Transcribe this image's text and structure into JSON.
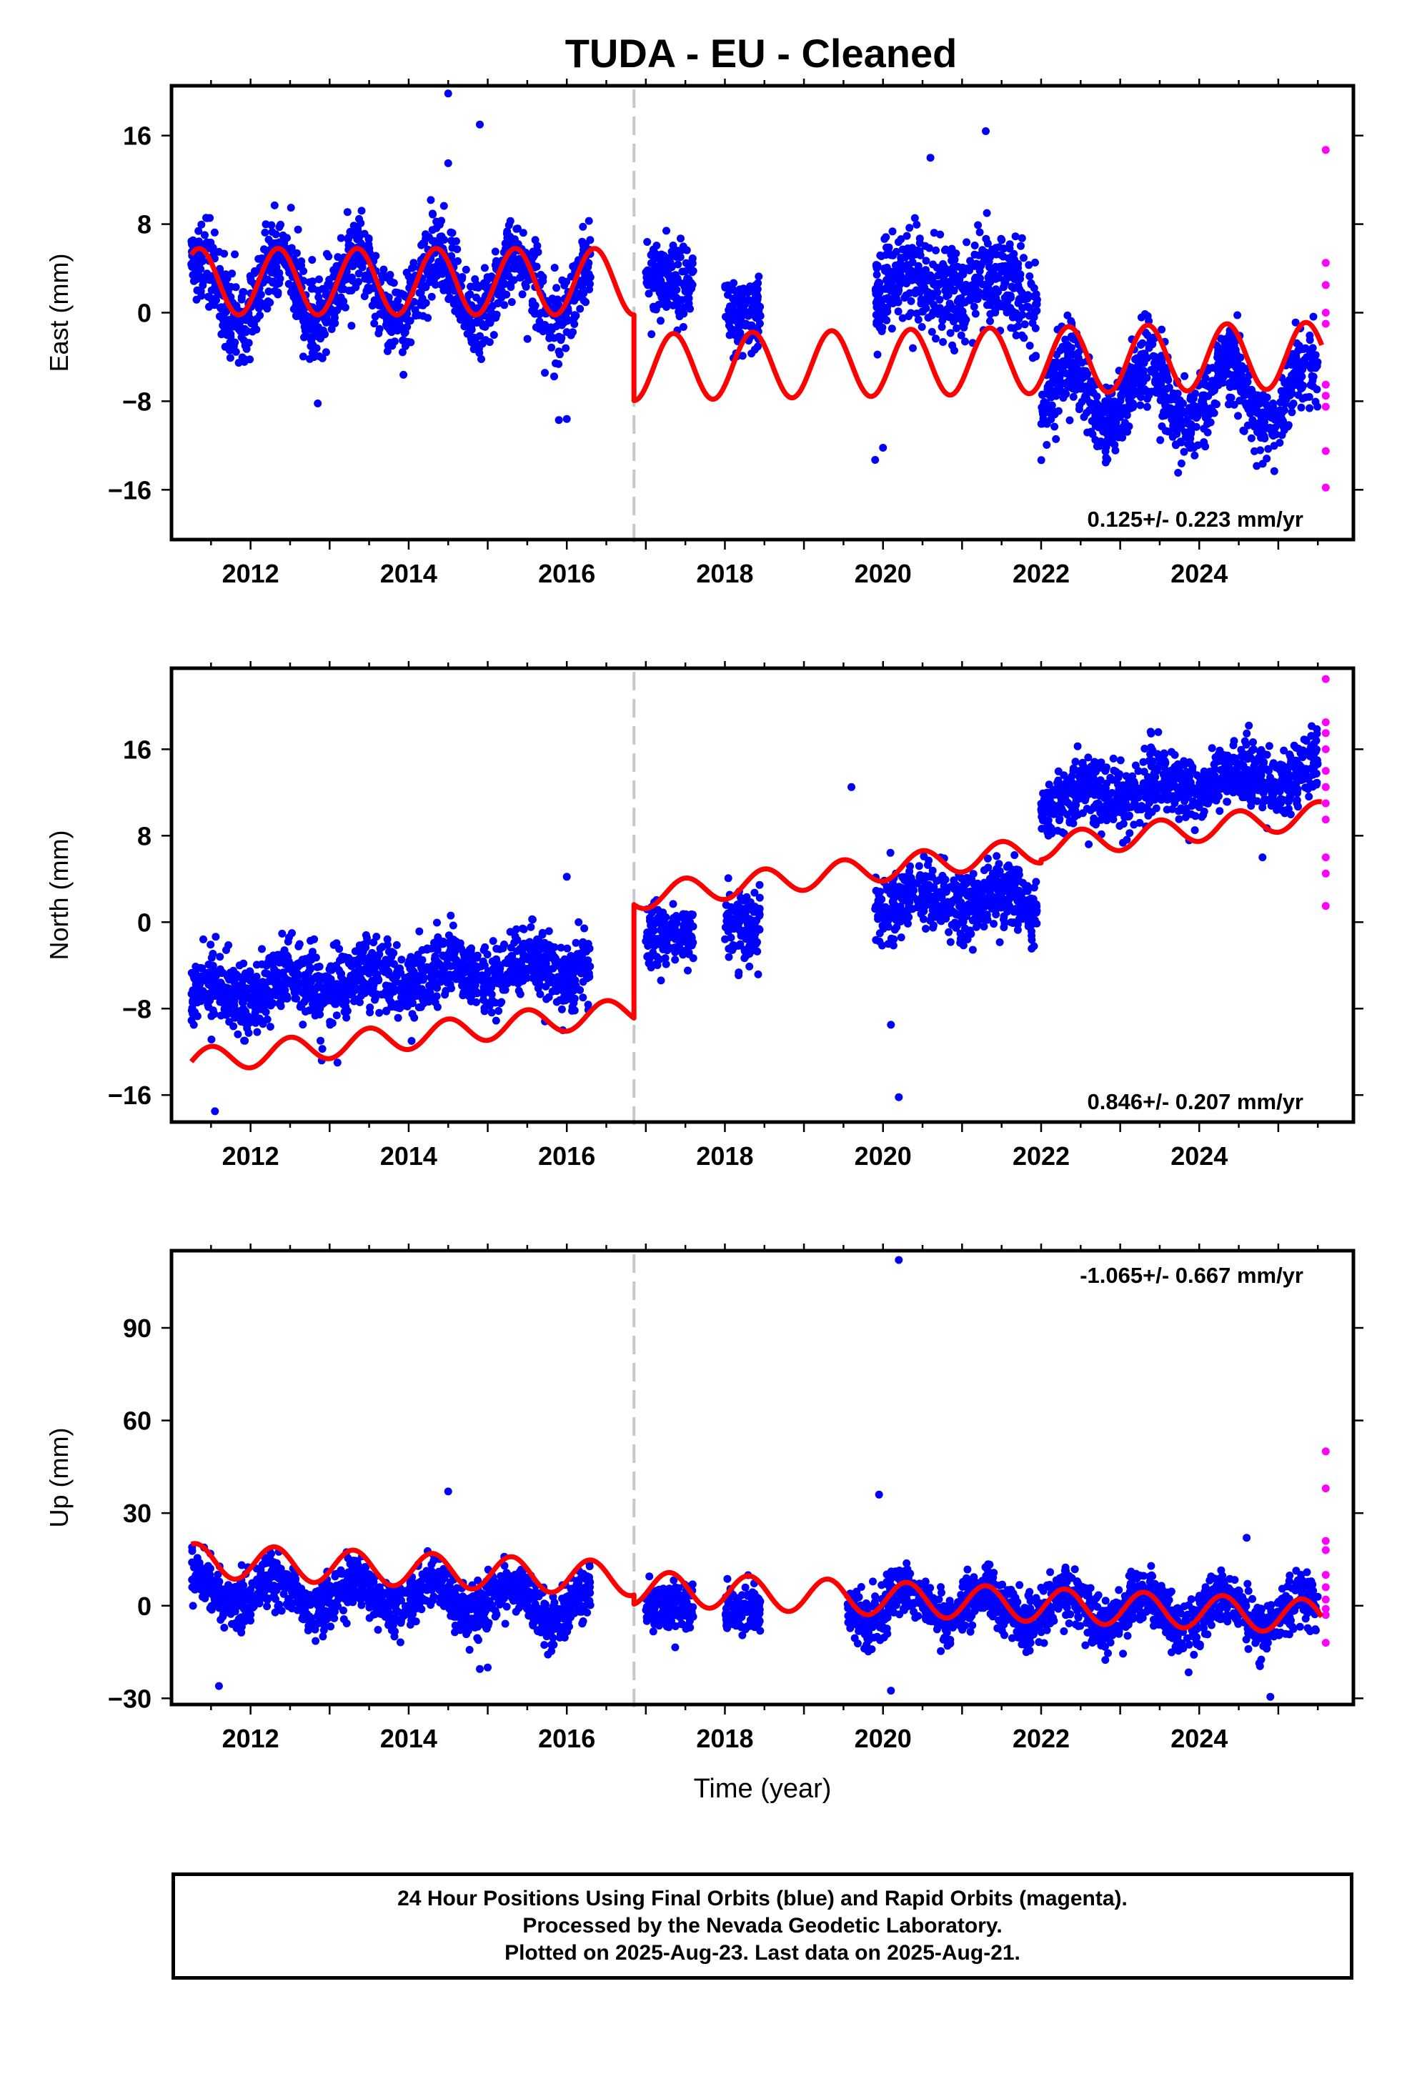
{
  "title": "TUDA  - EU - Cleaned",
  "footer": {
    "line1": "24 Hour Positions Using Final Orbits (blue) and Rapid Orbits (magenta).",
    "line2": "Processed by the Nevada Geodetic Laboratory.",
    "line3": "Plotted on 2025-Aug-23. Last data on 2025-Aug-21."
  },
  "colors": {
    "final_orbits": "#0000ff",
    "rapid_orbits": "#ff00ff",
    "model_fit": "#ff0000",
    "event_line": "#c8c8c8"
  },
  "chart_data": [
    {
      "type": "scatter",
      "id": "east",
      "ylabel": "East (mm)",
      "xlabel": "",
      "xlim": [
        2011.0,
        2025.95
      ],
      "ylim": [
        -20.5,
        20.5
      ],
      "x_ticks": [
        2012,
        2014,
        2016,
        2018,
        2020,
        2022,
        2024
      ],
      "y_ticks": [
        -16,
        -8,
        0,
        8,
        16
      ],
      "y_tick_labels": [
        "−16",
        "−8",
        "0",
        "8",
        "16"
      ],
      "rate_label": "0.125+/- 0.223 mm/yr",
      "rate_position": "bottom-right",
      "grid": false,
      "event_line_x": 2016.85,
      "segments": [
        {
          "from": 2011.25,
          "to": 2016.85,
          "offset": 2.8,
          "slope": 0.0,
          "amplitude": 3.0,
          "phase": 0.1
        },
        {
          "from": 2016.85,
          "to": 2025.55,
          "offset": -4.8,
          "slope": 0.125,
          "amplitude": 3.0,
          "phase": 0.1
        }
      ],
      "data_clusters": [
        {
          "from": 2011.25,
          "to": 2016.3,
          "center": 2.2,
          "spread": 2.4,
          "seasonal": 3.0
        },
        {
          "from": 2017.0,
          "to": 2017.6,
          "center": 3.0,
          "spread": 2.4,
          "seasonal": 0
        },
        {
          "from": 2018.0,
          "to": 2018.45,
          "center": 0.0,
          "spread": 2.4,
          "seasonal": 0
        },
        {
          "from": 2019.9,
          "to": 2021.95,
          "center": 2.5,
          "spread": 3.0,
          "seasonal": 1.0
        },
        {
          "from": 2022.0,
          "to": 2025.5,
          "center": -7.5,
          "spread": 2.4,
          "seasonal": 3.0
        }
      ],
      "outliers": [
        [
          2014.5,
          19.8
        ],
        [
          2014.5,
          13.5
        ],
        [
          2014.9,
          17.0
        ],
        [
          2012.85,
          -8.2
        ],
        [
          2015.9,
          -9.7
        ],
        [
          2016.0,
          -9.6
        ],
        [
          2020.0,
          -12.2
        ],
        [
          2020.6,
          14.0
        ],
        [
          2021.3,
          16.4
        ],
        [
          2019.9,
          -13.3
        ]
      ],
      "rapid_points": [
        [
          2025.6,
          14.7
        ],
        [
          2025.6,
          4.5
        ],
        [
          2025.6,
          2.5
        ],
        [
          2025.6,
          0.0
        ],
        [
          2025.6,
          -1.0
        ],
        [
          2025.6,
          -6.5
        ],
        [
          2025.6,
          -7.5
        ],
        [
          2025.6,
          -8.5
        ],
        [
          2025.6,
          -12.5
        ],
        [
          2025.6,
          -15.8
        ]
      ]
    },
    {
      "type": "scatter",
      "id": "north",
      "ylabel": "North (mm)",
      "xlabel": "",
      "xlim": [
        2011.0,
        2025.95
      ],
      "ylim": [
        -18.5,
        23.5
      ],
      "x_ticks": [
        2012,
        2014,
        2016,
        2018,
        2020,
        2022,
        2024
      ],
      "y_ticks": [
        -16,
        -8,
        0,
        8,
        16
      ],
      "y_tick_labels": [
        "−16",
        "−8",
        "0",
        "8",
        "16"
      ],
      "rate_label": "0.846+/- 0.207 mm/yr",
      "rate_position": "bottom-right",
      "grid": false,
      "event_line_x": 2016.85,
      "segments": [
        {
          "from": 2011.25,
          "to": 2016.85,
          "offset": -7.2,
          "slope": 0.846,
          "amplitude": 1.2,
          "phase": 0.25
        },
        {
          "from": 2016.85,
          "to": 2022.0,
          "offset": 3.3,
          "slope": 0.846,
          "amplitude": 1.2,
          "phase": 0.25
        },
        {
          "from": 2022.0,
          "to": 2025.55,
          "offset": 3.6,
          "slope": 0.846,
          "amplitude": 1.2,
          "phase": 0.25
        }
      ],
      "data_clusters": [
        {
          "from": 2011.25,
          "to": 2016.3,
          "center": -5.2,
          "spread": 2.2,
          "seasonal": 1.0,
          "trend": 0.55
        },
        {
          "from": 2017.0,
          "to": 2017.6,
          "center": -1.0,
          "spread": 2.0,
          "seasonal": 0
        },
        {
          "from": 2018.0,
          "to": 2018.45,
          "center": -0.5,
          "spread": 2.2,
          "seasonal": 0
        },
        {
          "from": 2019.9,
          "to": 2021.95,
          "center": 2.0,
          "spread": 2.0,
          "seasonal": 0.8
        },
        {
          "from": 2022.0,
          "to": 2025.5,
          "center": 12.5,
          "spread": 2.0,
          "seasonal": 1.0,
          "trend": 0.7
        }
      ],
      "outliers": [
        [
          2011.55,
          -17.5
        ],
        [
          2012.9,
          -12.8
        ],
        [
          2013.1,
          -13.0
        ],
        [
          2015.95,
          -10.0
        ],
        [
          2019.6,
          12.5
        ],
        [
          2020.2,
          -16.2
        ],
        [
          2020.1,
          -9.5
        ],
        [
          2016.0,
          4.2
        ],
        [
          2024.8,
          6.0
        ]
      ],
      "rapid_points": [
        [
          2025.6,
          22.5
        ],
        [
          2025.6,
          18.5
        ],
        [
          2025.6,
          17.5
        ],
        [
          2025.6,
          16.0
        ],
        [
          2025.6,
          14.0
        ],
        [
          2025.6,
          12.5
        ],
        [
          2025.6,
          11.0
        ],
        [
          2025.6,
          9.5
        ],
        [
          2025.6,
          6.0
        ],
        [
          2025.6,
          4.5
        ],
        [
          2025.6,
          1.5
        ]
      ]
    },
    {
      "type": "scatter",
      "id": "up",
      "ylabel": "Up (mm)",
      "xlabel": "Time (year)",
      "xlim": [
        2011.0,
        2025.95
      ],
      "ylim": [
        -32,
        115
      ],
      "x_ticks": [
        2012,
        2014,
        2016,
        2018,
        2020,
        2022,
        2024
      ],
      "y_ticks": [
        -30,
        0,
        30,
        60,
        90
      ],
      "y_tick_labels": [
        "−30",
        "0",
        "30",
        "60",
        "90"
      ],
      "rate_label": "-1.065+/- 0.667 mm/yr",
      "rate_position": "top-right",
      "grid": false,
      "event_line_x": 2016.85,
      "segments": [
        {
          "from": 2011.25,
          "to": 2016.85,
          "offset": 7.5,
          "slope": -1.065,
          "amplitude": 5.5,
          "phase": 0.05
        },
        {
          "from": 2016.85,
          "to": 2025.55,
          "offset": 4.5,
          "slope": -1.065,
          "amplitude": 5.5,
          "phase": 0.05
        }
      ],
      "data_clusters": [
        {
          "from": 2011.25,
          "to": 2016.3,
          "center": 3.0,
          "spread": 5.5,
          "seasonal": 5.0,
          "trend": -1.1
        },
        {
          "from": 2017.0,
          "to": 2017.6,
          "center": 0.0,
          "spread": 5.0,
          "seasonal": 0
        },
        {
          "from": 2018.0,
          "to": 2018.45,
          "center": -2.0,
          "spread": 5.0,
          "seasonal": 0
        },
        {
          "from": 2019.55,
          "to": 2025.5,
          "center": -1.0,
          "spread": 5.5,
          "seasonal": 5.0,
          "trend": -0.6
        }
      ],
      "outliers": [
        [
          2011.6,
          -26.0
        ],
        [
          2014.5,
          37.0
        ],
        [
          2020.2,
          112.0
        ],
        [
          2019.95,
          36.0
        ],
        [
          2020.1,
          -27.5
        ],
        [
          2024.9,
          -29.5
        ],
        [
          2014.9,
          -20.5
        ],
        [
          2015.0,
          -20.0
        ],
        [
          2024.6,
          22.0
        ]
      ],
      "rapid_points": [
        [
          2025.6,
          50.0
        ],
        [
          2025.6,
          38.0
        ],
        [
          2025.6,
          21.0
        ],
        [
          2025.6,
          18.0
        ],
        [
          2025.6,
          10.0
        ],
        [
          2025.6,
          6.0
        ],
        [
          2025.6,
          2.0
        ],
        [
          2025.6,
          -1.0
        ],
        [
          2025.6,
          -3.0
        ],
        [
          2025.6,
          -12.0
        ]
      ]
    }
  ]
}
